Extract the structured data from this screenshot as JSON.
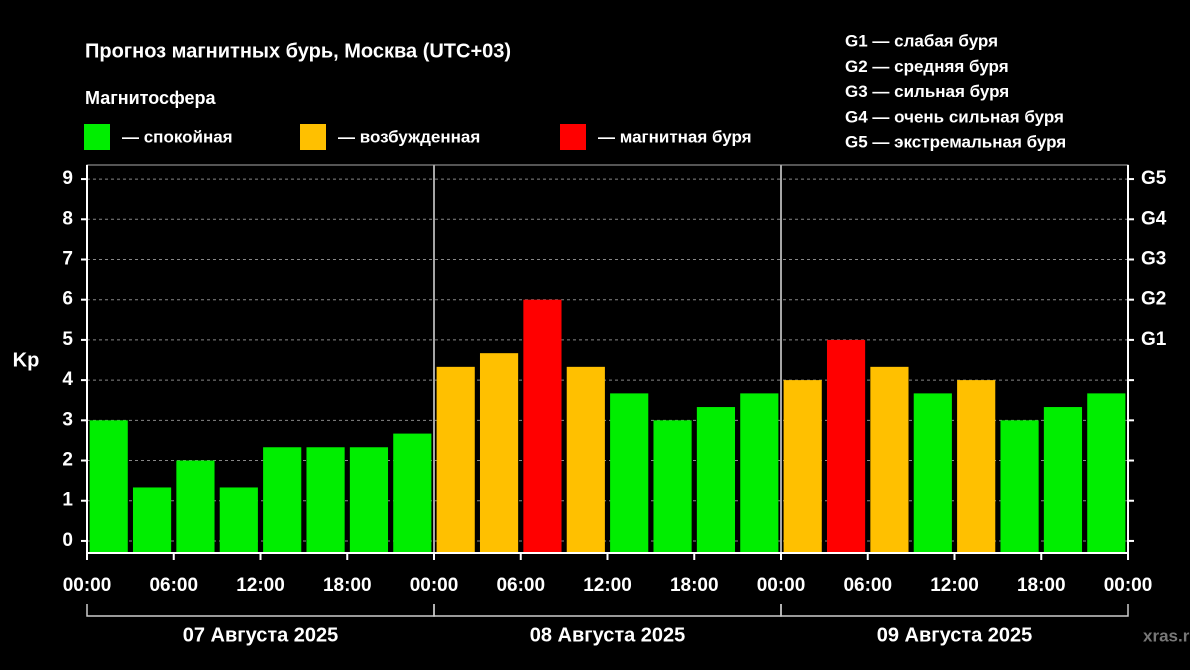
{
  "chart_data": {
    "type": "bar",
    "title": "Прогноз магнитных бурь, Москва (UTC+03)",
    "legend_title": "Магнитосфера",
    "legend": [
      {
        "label": "— спокойная",
        "color": "#00ee00"
      },
      {
        "label": "— возбужденная",
        "color": "#ffc000"
      },
      {
        "label": "— магнитная буря",
        "color": "#ff0000"
      }
    ],
    "scale_legend": [
      "G1 — слабая буря",
      "G2 — средняя буря",
      "G3 — сильная буря",
      "G4 — очень сильная буря",
      "G5 — экстремальная буря"
    ],
    "y_label": "Kp",
    "watermark": "xras.ru",
    "x": [
      1.5,
      4.5,
      7.5,
      10.5,
      13.5,
      16.5,
      19.5,
      22.5,
      25.5,
      28.5,
      31.5,
      34.5,
      37.5,
      40.5,
      43.5,
      46.5,
      49.5,
      52.5,
      55.5,
      58.5,
      61.5,
      64.5,
      67.5,
      70.5
    ],
    "values": [
      3,
      1.33,
      2,
      1.33,
      2.33,
      2.33,
      2.33,
      2.67,
      4.33,
      4.67,
      6,
      4.33,
      3.67,
      3,
      3.33,
      3.67,
      4,
      5,
      4.33,
      3.67,
      4,
      3,
      3.33,
      3.67
    ],
    "colors": [
      "#00ee00",
      "#00ee00",
      "#00ee00",
      "#00ee00",
      "#00ee00",
      "#00ee00",
      "#00ee00",
      "#00ee00",
      "#ffc000",
      "#ffc000",
      "#ff0000",
      "#ffc000",
      "#00ee00",
      "#00ee00",
      "#00ee00",
      "#00ee00",
      "#ffc000",
      "#ff0000",
      "#ffc000",
      "#00ee00",
      "#ffc000",
      "#00ee00",
      "#00ee00",
      "#00ee00"
    ],
    "xlim": [
      0,
      72
    ],
    "xticks": [
      {
        "value": 0,
        "label": "00:00"
      },
      {
        "value": 6,
        "label": "06:00"
      },
      {
        "value": 12,
        "label": "12:00"
      },
      {
        "value": 18,
        "label": "18:00"
      },
      {
        "value": 24,
        "label": "00:00"
      },
      {
        "value": 30,
        "label": "06:00"
      },
      {
        "value": 36,
        "label": "12:00"
      },
      {
        "value": 42,
        "label": "18:00"
      },
      {
        "value": 48,
        "label": "00:00"
      },
      {
        "value": 54,
        "label": "06:00"
      },
      {
        "value": 60,
        "label": "12:00"
      },
      {
        "value": 66,
        "label": "18:00"
      },
      {
        "value": 72,
        "label": "00:00"
      }
    ],
    "days": [
      {
        "label": "07 Августа 2025",
        "range": [
          0,
          24
        ]
      },
      {
        "label": "08 Августа 2025",
        "range": [
          24,
          48
        ]
      },
      {
        "label": "09 Августа 2025",
        "range": [
          48,
          72
        ]
      }
    ],
    "ylim": [
      -0.3,
      9.35
    ],
    "yticks": [
      0,
      1,
      2,
      3,
      4,
      5,
      6,
      7,
      8,
      9
    ],
    "y2lim": [
      -0.3,
      9.35
    ],
    "y2ticks": [
      {
        "value": 5,
        "label": "G1"
      },
      {
        "value": 6,
        "label": "G2"
      },
      {
        "value": 7,
        "label": "G3"
      },
      {
        "value": 8,
        "label": "G4"
      },
      {
        "value": 9,
        "label": "G5"
      }
    ],
    "grid": true
  }
}
